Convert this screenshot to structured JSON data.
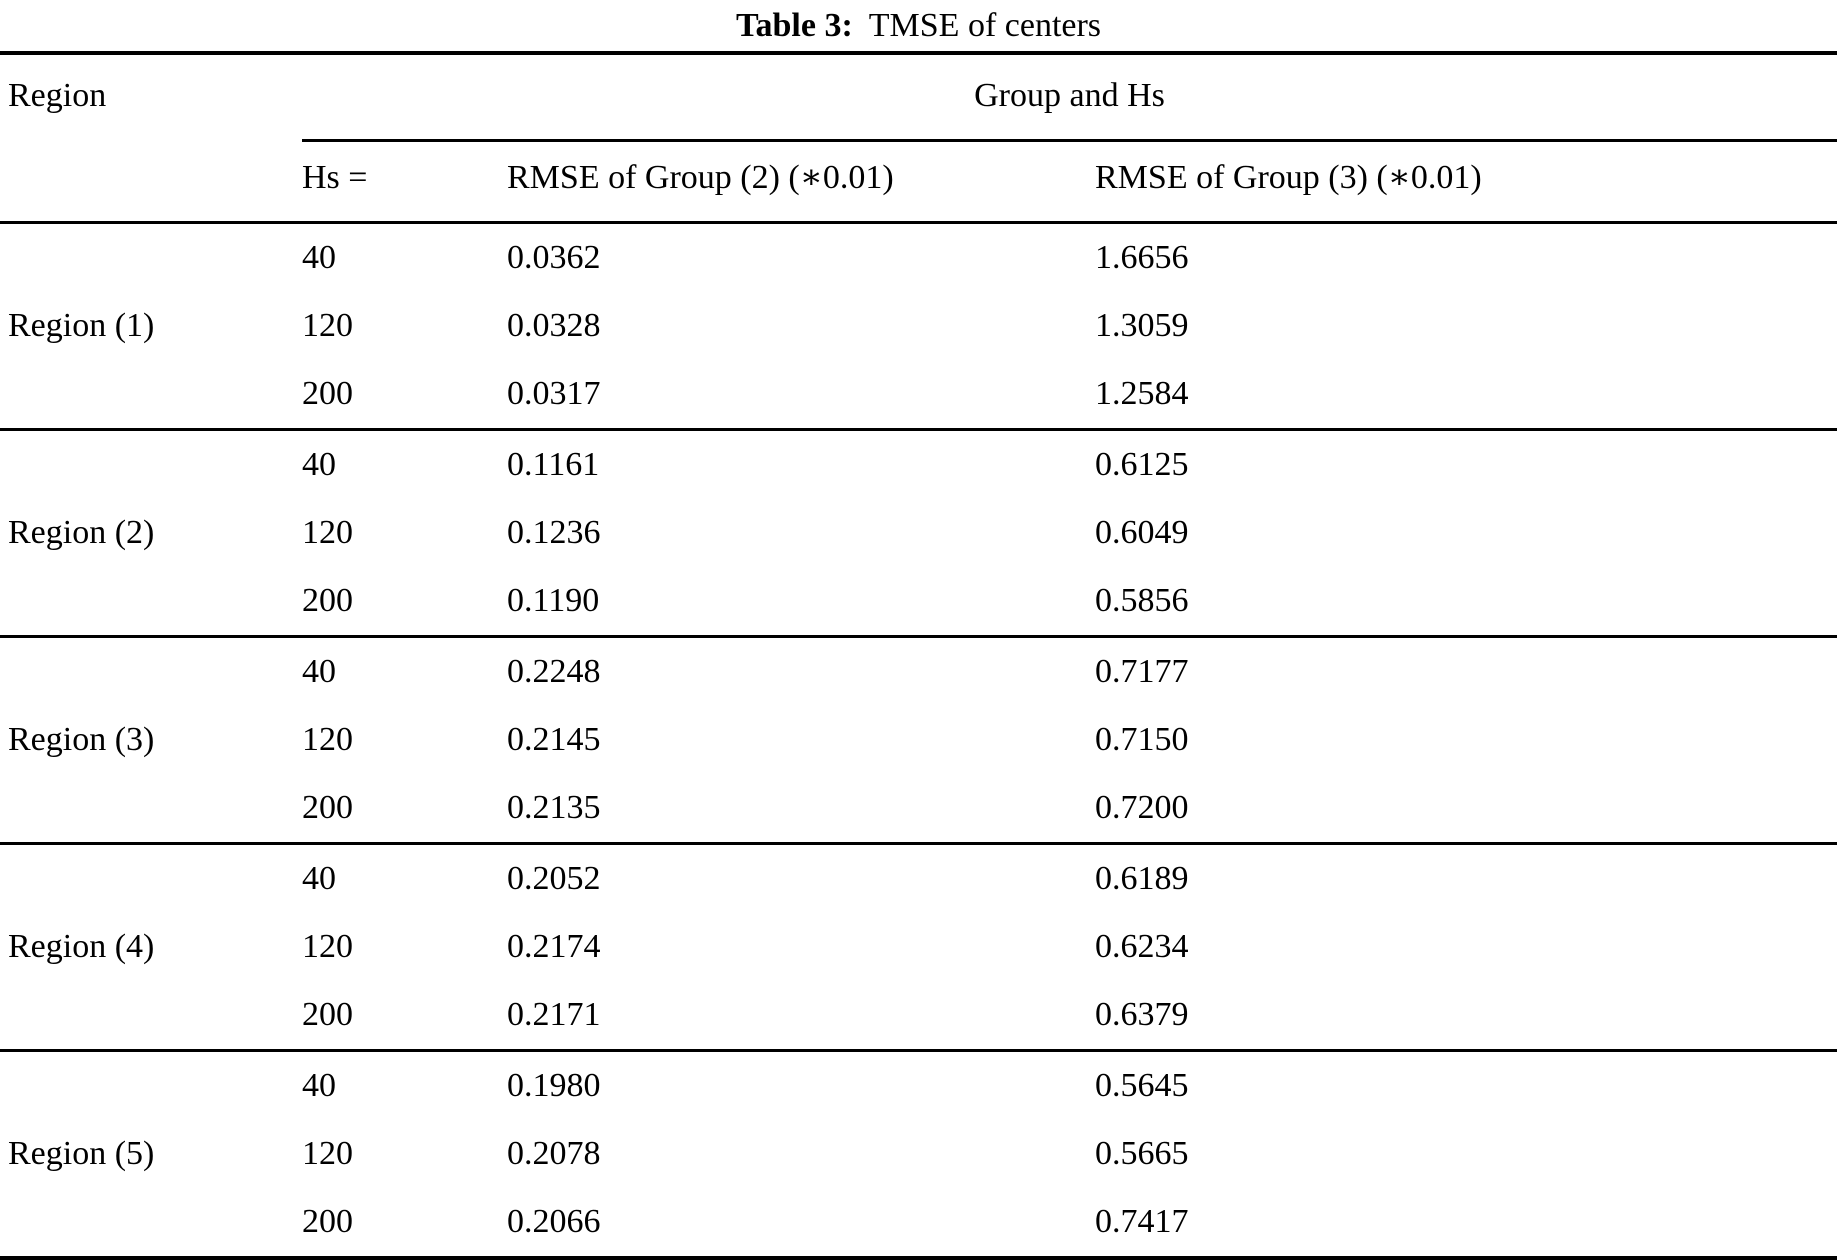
{
  "caption": {
    "label": "Table 3:",
    "text": "TMSE of centers"
  },
  "table": {
    "region_header": "Region",
    "group_header": "Group and Hs",
    "subheaders": {
      "hs": "Hs =",
      "g2": "RMSE of Group (2) (∗0.01)",
      "g3": "RMSE of Group (3) (∗0.01)"
    },
    "regions": [
      {
        "label": "Region (1)",
        "rows": [
          {
            "hs": "40",
            "g2": "0.0362",
            "g3": "1.6656"
          },
          {
            "hs": "120",
            "g2": "0.0328",
            "g3": "1.3059"
          },
          {
            "hs": "200",
            "g2": "0.0317",
            "g3": "1.2584"
          }
        ]
      },
      {
        "label": "Region (2)",
        "rows": [
          {
            "hs": "40",
            "g2": "0.1161",
            "g3": "0.6125"
          },
          {
            "hs": "120",
            "g2": "0.1236",
            "g3": "0.6049"
          },
          {
            "hs": "200",
            "g2": "0.1190",
            "g3": "0.5856"
          }
        ]
      },
      {
        "label": "Region (3)",
        "rows": [
          {
            "hs": "40",
            "g2": "0.2248",
            "g3": "0.7177"
          },
          {
            "hs": "120",
            "g2": "0.2145",
            "g3": "0.7150"
          },
          {
            "hs": "200",
            "g2": "0.2135",
            "g3": "0.7200"
          }
        ]
      },
      {
        "label": "Region (4)",
        "rows": [
          {
            "hs": "40",
            "g2": "0.2052",
            "g3": "0.6189"
          },
          {
            "hs": "120",
            "g2": "0.2174",
            "g3": "0.6234"
          },
          {
            "hs": "200",
            "g2": "0.2171",
            "g3": "0.6379"
          }
        ]
      },
      {
        "label": "Region (5)",
        "rows": [
          {
            "hs": "40",
            "g2": "0.1980",
            "g3": "0.5645"
          },
          {
            "hs": "120",
            "g2": "0.2078",
            "g3": "0.5665"
          },
          {
            "hs": "200",
            "g2": "0.2066",
            "g3": "0.7417"
          }
        ]
      }
    ]
  }
}
